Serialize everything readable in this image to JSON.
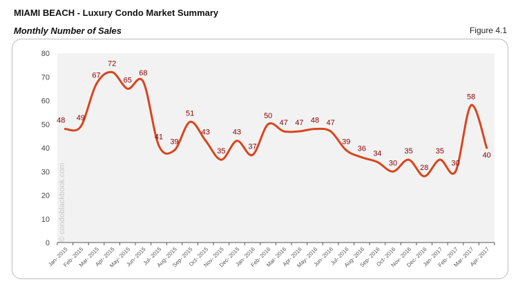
{
  "header": {
    "title": "MIAMI BEACH - Luxury Condo Market Summary",
    "subtitle": "Monthly Number of Sales",
    "figure": "Figure 4.1"
  },
  "watermark": "© condoblackbook.com",
  "chart_data": {
    "type": "line",
    "categories": [
      "Jan- 2015",
      "Feb- 2015",
      "Mar- 2015",
      "Apr- 2015",
      "May- 2015",
      "Jun- 2015",
      "Jul- 2015",
      "Aug- 2015",
      "Sep- 2015",
      "Oct- 2015",
      "Nov- 2015",
      "Dec- 2015",
      "Jan- 2016",
      "Feb- 2016",
      "Mar- 2016",
      "Apr- 2016",
      "May- 2016",
      "Jun- 2016",
      "Jul- 2016",
      "Aug- 2016",
      "Sep- 2016",
      "Oct- 2016",
      "Nov- 2016",
      "Dec- 2016",
      "Jan- 2017",
      "Feb- 2017",
      "Mar- 2017",
      "Apr- 2017"
    ],
    "values": [
      48,
      49,
      67,
      72,
      65,
      68,
      41,
      39,
      51,
      43,
      35,
      43,
      37,
      50,
      47,
      47,
      48,
      47,
      39,
      36,
      34,
      30,
      35,
      28,
      35,
      30,
      58,
      40
    ],
    "ylim": [
      0,
      80
    ],
    "yticks": [
      0,
      10,
      20,
      30,
      40,
      50,
      60,
      70,
      80
    ],
    "grid": false,
    "line_color": "#d9441c",
    "label_color": "#8b0000",
    "plot_background": "#f2f2f2",
    "smooth": true
  }
}
